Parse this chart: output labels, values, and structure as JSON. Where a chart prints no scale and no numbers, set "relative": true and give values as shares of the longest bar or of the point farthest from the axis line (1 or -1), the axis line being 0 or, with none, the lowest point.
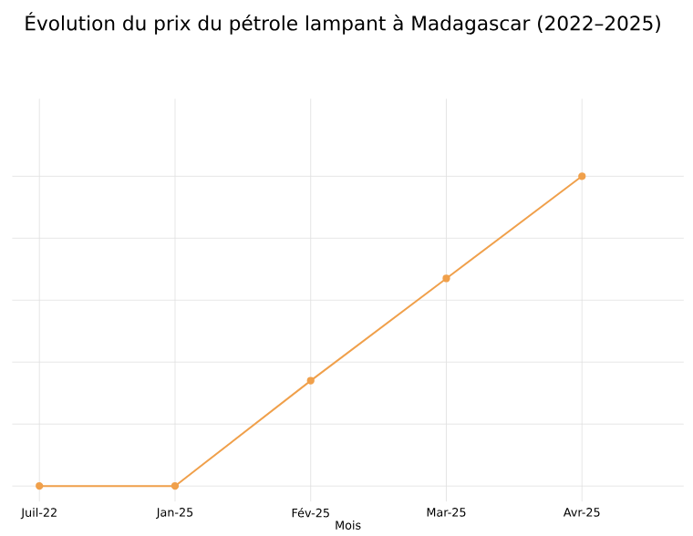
{
  "chart_data": {
    "type": "line",
    "title": "Évolution du prix du pétrole lampant à Madagascar (2022–2025)",
    "xlabel": "Mois",
    "categories": [
      "Juil-22",
      "Jan-25",
      "Fév-25",
      "Mar-25",
      "Avr-25"
    ],
    "series": [
      {
        "color": "#f0a04b",
        "values": [
          0,
          0,
          0.34,
          0.67,
          1.0
        ]
      }
    ],
    "relative": true,
    "grid": true,
    "marker": "circle",
    "line_style": "solid"
  }
}
